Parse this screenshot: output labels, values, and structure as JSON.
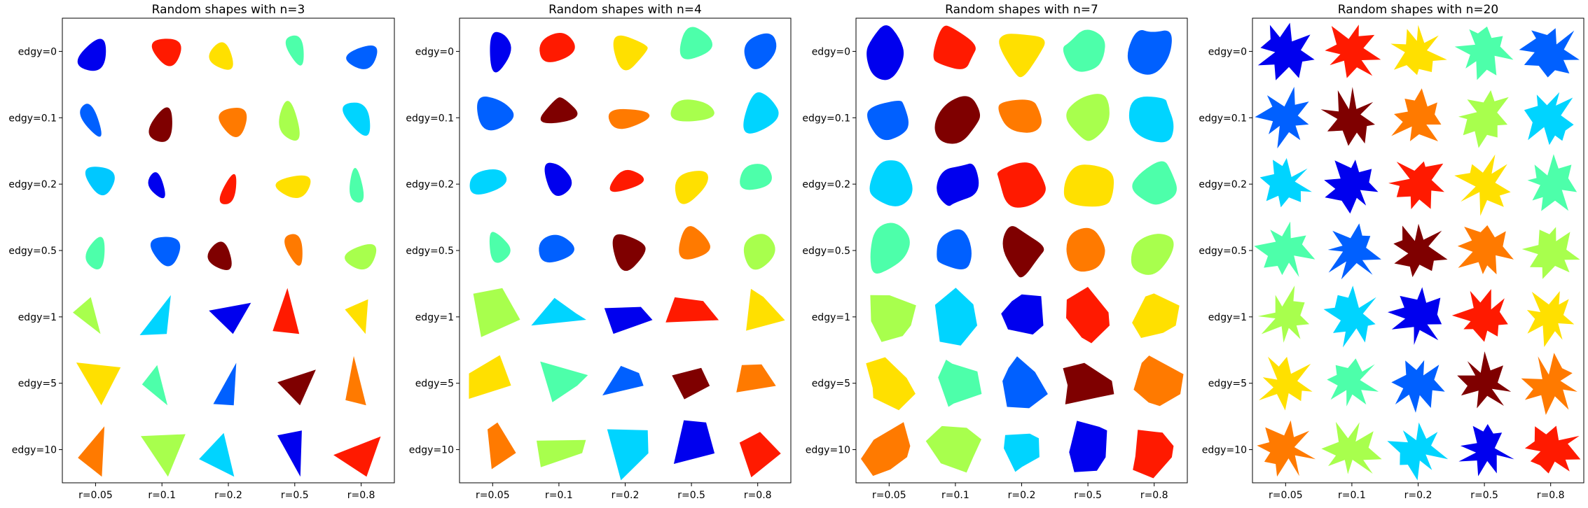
{
  "chart_data": [
    {
      "type": "other",
      "title": "Random shapes with n=3",
      "x_tick_labels": [
        "r=0.05",
        "r=0.1",
        "r=0.2",
        "r=0.5",
        "r=0.8"
      ],
      "y_tick_labels": [
        "edgy=0",
        "edgy=0.1",
        "edgy=0.2",
        "edgy=0.5",
        "edgy=1",
        "edgy=5",
        "edgy=10"
      ],
      "shape_colors": [
        [
          "#0000ee",
          "#ff1a00",
          "#ffe000",
          "#4dffaa",
          "#0060ff"
        ],
        [
          "#0060ff",
          "#7f0000",
          "#ff7a00",
          "#a8ff4d",
          "#00d4ff"
        ],
        [
          "#00c8ff",
          "#0000ee",
          "#ff1a00",
          "#ffe000",
          "#4dffaa"
        ],
        [
          "#4dffaa",
          "#0060ff",
          "#7f0000",
          "#ff7a00",
          "#a8ff4d"
        ],
        [
          "#a8ff4d",
          "#00d4ff",
          "#0000ee",
          "#ff1a00",
          "#ffe000"
        ],
        [
          "#ffe000",
          "#4dffaa",
          "#0060ff",
          "#7f0000",
          "#ff7a00"
        ],
        [
          "#ff7a00",
          "#a8ff4d",
          "#00d4ff",
          "#0000ee",
          "#ff1a00"
        ]
      ]
    },
    {
      "type": "other",
      "title": "Random shapes with n=4",
      "x_tick_labels": [
        "r=0.05",
        "r=0.1",
        "r=0.2",
        "r=0.5",
        "r=0.8"
      ],
      "y_tick_labels": [
        "edgy=0",
        "edgy=0.1",
        "edgy=0.2",
        "edgy=0.5",
        "edgy=1",
        "edgy=5",
        "edgy=10"
      ],
      "shape_colors": [
        [
          "#0000ee",
          "#ff1a00",
          "#ffe000",
          "#4dffaa",
          "#0060ff"
        ],
        [
          "#0060ff",
          "#7f0000",
          "#ff7a00",
          "#a8ff4d",
          "#00d4ff"
        ],
        [
          "#00d4ff",
          "#0000ee",
          "#ff1a00",
          "#ffe000",
          "#4dffaa"
        ],
        [
          "#4dffaa",
          "#0060ff",
          "#7f0000",
          "#ff7a00",
          "#a8ff4d"
        ],
        [
          "#a8ff4d",
          "#00d4ff",
          "#0000ee",
          "#ff1a00",
          "#ffe000"
        ],
        [
          "#ffe000",
          "#4dffaa",
          "#0060ff",
          "#7f0000",
          "#ff7a00"
        ],
        [
          "#ff7a00",
          "#a8ff4d",
          "#00d4ff",
          "#0000ee",
          "#ff1a00"
        ]
      ]
    },
    {
      "type": "other",
      "title": "Random shapes with n=7",
      "x_tick_labels": [
        "r=0.05",
        "r=0.1",
        "r=0.2",
        "r=0.5",
        "r=0.8"
      ],
      "y_tick_labels": [
        "edgy=0",
        "edgy=0.1",
        "edgy=0.2",
        "edgy=0.5",
        "edgy=1",
        "edgy=5",
        "edgy=10"
      ],
      "shape_colors": [
        [
          "#0000ee",
          "#ff1a00",
          "#ffe000",
          "#4dffaa",
          "#0060ff"
        ],
        [
          "#0060ff",
          "#7f0000",
          "#ff7a00",
          "#a8ff4d",
          "#00d4ff"
        ],
        [
          "#00d4ff",
          "#0000ee",
          "#ff1a00",
          "#ffe000",
          "#4dffaa"
        ],
        [
          "#4dffaa",
          "#0060ff",
          "#7f0000",
          "#ff7a00",
          "#a8ff4d"
        ],
        [
          "#a8ff4d",
          "#00d4ff",
          "#0000ee",
          "#ff1a00",
          "#ffe000"
        ],
        [
          "#ffe000",
          "#4dffaa",
          "#0060ff",
          "#7f0000",
          "#ff7a00"
        ],
        [
          "#ff7a00",
          "#a8ff4d",
          "#00d4ff",
          "#0000ee",
          "#ff1a00"
        ]
      ]
    },
    {
      "type": "other",
      "title": "Random shapes with n=20",
      "x_tick_labels": [
        "r=0.05",
        "r=0.1",
        "r=0.2",
        "r=0.5",
        "r=0.8"
      ],
      "y_tick_labels": [
        "edgy=0",
        "edgy=0.1",
        "edgy=0.2",
        "edgy=0.5",
        "edgy=1",
        "edgy=5",
        "edgy=10"
      ],
      "shape_colors": [
        [
          "#0000ee",
          "#ff1a00",
          "#ffe000",
          "#4dffaa",
          "#0060ff"
        ],
        [
          "#0060ff",
          "#7f0000",
          "#ff7a00",
          "#a8ff4d",
          "#00d4ff"
        ],
        [
          "#00d4ff",
          "#0000ee",
          "#ff1a00",
          "#ffe000",
          "#4dffaa"
        ],
        [
          "#4dffaa",
          "#0060ff",
          "#7f0000",
          "#ff7a00",
          "#a8ff4d"
        ],
        [
          "#a8ff4d",
          "#00d4ff",
          "#0000ee",
          "#ff1a00",
          "#ffe000"
        ],
        [
          "#ffe000",
          "#4dffaa",
          "#0060ff",
          "#7f0000",
          "#ff7a00"
        ],
        [
          "#ff7a00",
          "#a8ff4d",
          "#00d4ff",
          "#0000ee",
          "#ff1a00"
        ]
      ]
    }
  ]
}
